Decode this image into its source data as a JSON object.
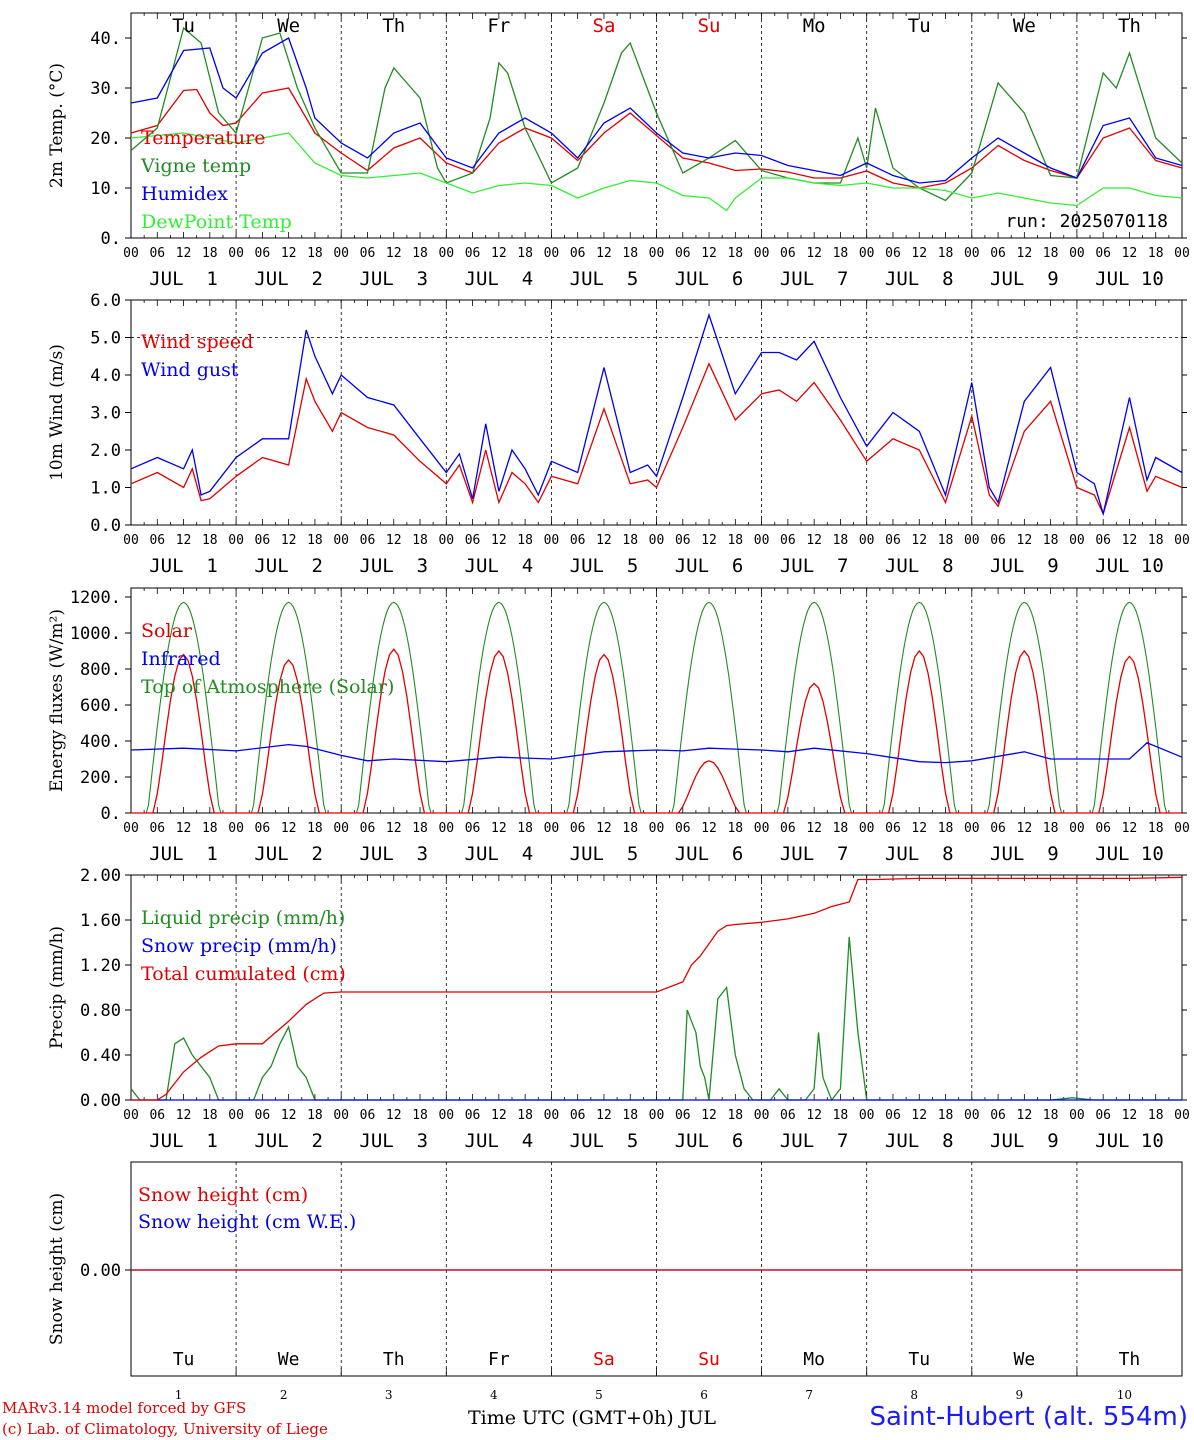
{
  "run_label": "run: 2025070118",
  "day_names": [
    "Tu",
    "We",
    "Th",
    "Fr",
    "Sa",
    "Su",
    "Mo",
    "Tu",
    "We",
    "Th"
  ],
  "day_name_colors": [
    "#000000",
    "#000000",
    "#000000",
    "#000000",
    "#e00000",
    "#e00000",
    "#000000",
    "#000000",
    "#000000",
    "#000000"
  ],
  "date_labels": [
    "JUL  1",
    "JUL  2",
    "JUL  3",
    "JUL  4",
    "JUL  5",
    "JUL  6",
    "JUL  7",
    "JUL  8",
    "JUL  9",
    "JUL 10"
  ],
  "hour_ticks": [
    "00",
    "06",
    "12",
    "18"
  ],
  "last_hour_tick": "00",
  "day_numbers": [
    "1",
    "2",
    "3",
    "4",
    "5",
    "6",
    "7",
    "8",
    "9",
    "10"
  ],
  "xaxis_title": "Time UTC (GMT+0h) JUL",
  "credit_line1": "MARv3.14 model forced by GFS",
  "credit_line2": "(c) Lab. of Climatology, University of Liege",
  "station": "Saint-Hubert (alt. 554m)",
  "chart_data": [
    {
      "type": "line",
      "ylabel": "2m Temp. (°C)",
      "ylim": [
        0,
        45
      ],
      "yticks": [
        "0.",
        "10.",
        "20.",
        "30.",
        "40."
      ],
      "x": "hours since JUL 1 00 UTC (0-240)",
      "series": [
        {
          "name": "Temperature",
          "color": "#e00000",
          "x": [
            0,
            6,
            12,
            15,
            18,
            21,
            24,
            30,
            36,
            40,
            42,
            48,
            54,
            60,
            66,
            72,
            78,
            84,
            90,
            96,
            102,
            108,
            114,
            120,
            126,
            132,
            138,
            144,
            150,
            156,
            162,
            168,
            174,
            180,
            186,
            192,
            198,
            204,
            210,
            216,
            222,
            228,
            234,
            240
          ],
          "y": [
            21,
            22.5,
            29.5,
            29.7,
            25,
            22.5,
            23,
            29,
            30,
            24,
            21,
            17,
            13.5,
            18,
            20,
            15,
            13,
            19,
            22,
            20,
            15.5,
            21,
            25,
            20.5,
            16,
            15,
            13.5,
            13.8,
            13.2,
            12,
            12,
            13.4,
            11,
            10,
            11,
            14,
            18.5,
            15.5,
            13.5,
            12,
            20,
            22,
            15.5,
            14
          ]
        },
        {
          "name": "Vigne temp",
          "color": "#228b22",
          "x": [
            0,
            6,
            12,
            16,
            20,
            24,
            30,
            34,
            38,
            40,
            42,
            48,
            54,
            58,
            60,
            66,
            70,
            72,
            78,
            82,
            84,
            86,
            90,
            96,
            102,
            108,
            112,
            114,
            120,
            126,
            132,
            138,
            144,
            150,
            156,
            162,
            166,
            168,
            170,
            174,
            180,
            186,
            192,
            198,
            204,
            210,
            216,
            222,
            225,
            228,
            234,
            240
          ],
          "y": [
            17.5,
            22,
            42,
            39,
            25,
            21,
            40,
            41,
            30,
            26,
            22,
            13,
            13,
            30,
            34,
            28,
            14,
            11,
            13,
            24,
            35,
            33,
            22,
            11,
            14,
            27,
            37,
            39,
            25,
            13,
            16,
            19.5,
            13.5,
            12,
            11,
            11,
            20,
            14,
            26,
            14,
            10,
            7.5,
            13,
            31,
            25,
            12.5,
            12,
            33,
            30,
            37,
            20,
            15
          ]
        },
        {
          "name": "Humidex",
          "color": "#0000ee",
          "x": [
            0,
            6,
            12,
            18,
            21,
            24,
            30,
            36,
            40,
            42,
            48,
            54,
            60,
            66,
            72,
            78,
            84,
            90,
            96,
            102,
            108,
            114,
            120,
            126,
            132,
            138,
            144,
            150,
            156,
            162,
            168,
            174,
            180,
            186,
            192,
            198,
            204,
            210,
            216,
            222,
            228,
            234,
            240
          ],
          "y": [
            27,
            28,
            37.5,
            38,
            30,
            28,
            37,
            40,
            30,
            24,
            19,
            16,
            21,
            23,
            16,
            14,
            21,
            24,
            21,
            16,
            23,
            26,
            21,
            17,
            16,
            17,
            16.5,
            14.5,
            13.5,
            12.5,
            15,
            12.5,
            11,
            11.5,
            16,
            20,
            17,
            14,
            12,
            22.5,
            24,
            16,
            14.5
          ]
        },
        {
          "name": "DewPoint Temp",
          "color": "#33ee33",
          "x": [
            0,
            6,
            12,
            18,
            24,
            30,
            36,
            42,
            48,
            54,
            60,
            66,
            72,
            78,
            84,
            90,
            96,
            102,
            108,
            114,
            120,
            126,
            132,
            136,
            138,
            144,
            150,
            156,
            162,
            168,
            174,
            180,
            186,
            192,
            198,
            204,
            210,
            216,
            222,
            228,
            234,
            240
          ],
          "y": [
            20,
            20.5,
            21,
            20,
            19,
            20,
            21,
            15,
            12.5,
            12,
            12.5,
            13,
            11,
            9,
            10.5,
            11,
            10.5,
            8,
            10,
            11.5,
            11,
            8.5,
            8,
            5.5,
            8,
            12,
            12,
            11,
            10.5,
            11,
            10,
            10,
            9.5,
            8,
            9,
            8,
            7,
            6.5,
            10,
            10,
            8.5,
            8
          ]
        }
      ],
      "legend": "upper-left"
    },
    {
      "type": "line",
      "ylabel": "10m Wind (m/s)",
      "ylim": [
        0,
        6
      ],
      "yticks": [
        "0.0",
        "1.0",
        "2.0",
        "3.0",
        "4.0",
        "5.0",
        "6.0"
      ],
      "reference_line": 5.0,
      "series": [
        {
          "name": "Wind speed",
          "color": "#e00000",
          "x": [
            0,
            6,
            12,
            14,
            16,
            18,
            24,
            30,
            36,
            40,
            42,
            46,
            48,
            54,
            60,
            66,
            72,
            75,
            78,
            81,
            84,
            87,
            90,
            93,
            96,
            102,
            108,
            114,
            118,
            120,
            126,
            132,
            138,
            144,
            148,
            152,
            156,
            162,
            168,
            174,
            180,
            186,
            192,
            196,
            198,
            204,
            210,
            216,
            220,
            222,
            228,
            232,
            234,
            240
          ],
          "y": [
            1.1,
            1.4,
            1.0,
            1.5,
            0.65,
            0.7,
            1.3,
            1.8,
            1.6,
            3.9,
            3.3,
            2.5,
            3,
            2.6,
            2.4,
            1.7,
            1.1,
            1.6,
            0.6,
            2.0,
            0.6,
            1.4,
            1.1,
            0.6,
            1.3,
            1.1,
            3.1,
            1.1,
            1.2,
            1.0,
            2.6,
            4.3,
            2.8,
            3.5,
            3.6,
            3.3,
            3.8,
            2.8,
            1.7,
            2.3,
            2.0,
            0.6,
            2.9,
            0.8,
            0.5,
            2.5,
            3.3,
            1.0,
            0.8,
            0.3,
            2.6,
            0.9,
            1.3,
            1.0
          ]
        },
        {
          "name": "Wind gust",
          "color": "#0000ee",
          "x": [
            0,
            6,
            12,
            14,
            16,
            18,
            24,
            30,
            36,
            40,
            42,
            46,
            48,
            54,
            60,
            66,
            72,
            75,
            78,
            81,
            84,
            87,
            90,
            93,
            96,
            102,
            108,
            114,
            118,
            120,
            126,
            132,
            138,
            144,
            148,
            152,
            156,
            162,
            168,
            174,
            180,
            186,
            192,
            196,
            198,
            204,
            210,
            216,
            220,
            222,
            228,
            232,
            234,
            240
          ],
          "y": [
            1.5,
            1.8,
            1.5,
            2.0,
            0.8,
            0.9,
            1.8,
            2.3,
            2.3,
            5.2,
            4.5,
            3.5,
            4,
            3.4,
            3.2,
            2.3,
            1.4,
            1.9,
            0.7,
            2.7,
            0.9,
            2.0,
            1.5,
            0.8,
            1.7,
            1.4,
            4.2,
            1.4,
            1.6,
            1.3,
            3.4,
            5.6,
            3.5,
            4.6,
            4.6,
            4.4,
            4.9,
            3.4,
            2.1,
            3,
            2.5,
            0.8,
            3.8,
            1.0,
            0.6,
            3.3,
            4.2,
            1.4,
            1.1,
            0.3,
            3.4,
            1.2,
            1.8,
            1.4
          ]
        }
      ],
      "legend": "upper-left"
    },
    {
      "type": "line",
      "ylabel": "Energy fluxes (W/m²)",
      "ylim": [
        0,
        1250
      ],
      "yticks": [
        "0.",
        "200.",
        "400.",
        "600.",
        "800.",
        "1000.",
        "1200."
      ],
      "series": [
        {
          "name": "Solar",
          "color": "#e00000",
          "peaks_per_day": [
            880,
            850,
            910,
            900,
            880,
            290,
            720,
            900,
            900,
            870
          ]
        },
        {
          "name": "Infrared",
          "color": "#0000ee",
          "x": [
            0,
            12,
            24,
            36,
            40,
            48,
            54,
            60,
            72,
            84,
            96,
            108,
            120,
            126,
            132,
            138,
            144,
            150,
            156,
            168,
            180,
            186,
            192,
            204,
            210,
            216,
            228,
            232,
            240
          ],
          "y": [
            350,
            360,
            345,
            380,
            370,
            320,
            290,
            300,
            285,
            310,
            300,
            340,
            350,
            345,
            360,
            355,
            350,
            340,
            360,
            330,
            285,
            280,
            290,
            340,
            300,
            300,
            300,
            390,
            310
          ]
        },
        {
          "name": "Top of Atmosphere (Solar)",
          "color": "#228b22",
          "daily_peak": 1170,
          "sunrise_hour": 3.8,
          "sunset_hour": 20.2
        }
      ],
      "legend": "upper-left"
    },
    {
      "type": "line",
      "ylabel": "Precip (mm/h)",
      "ylim": [
        0,
        2.0
      ],
      "yticks": [
        "0.00",
        "0.40",
        "0.80",
        "1.20",
        "1.60",
        "2.00"
      ],
      "series": [
        {
          "name": "Liquid precip (mm/h)",
          "color": "#228b22",
          "x": [
            0,
            2,
            4,
            8,
            10,
            12,
            14,
            16,
            18,
            20,
            22,
            24,
            26,
            28,
            30,
            32,
            34,
            36,
            38,
            40,
            42,
            44,
            46,
            48,
            60,
            120,
            126,
            127,
            128,
            129,
            130,
            131,
            132,
            134,
            136,
            138,
            140,
            142,
            144,
            146,
            148,
            150,
            152,
            154,
            156,
            157,
            158,
            159,
            160,
            162,
            164,
            166,
            168,
            170,
            200,
            210,
            215,
            220,
            240
          ],
          "y": [
            0.1,
            0,
            0,
            0,
            0.5,
            0.55,
            0.4,
            0.3,
            0.2,
            0,
            0,
            0,
            0,
            0,
            0.2,
            0.3,
            0.5,
            0.65,
            0.3,
            0.2,
            0,
            0,
            0,
            0,
            0,
            0,
            0,
            0.8,
            0.7,
            0.6,
            0.3,
            0.2,
            0,
            0.9,
            1.0,
            0.4,
            0.1,
            0,
            0,
            0,
            0.1,
            0,
            0,
            0,
            0.1,
            0.6,
            0.2,
            0.1,
            0,
            0.1,
            1.45,
            0.6,
            0,
            0,
            0,
            0,
            0.02,
            0,
            0
          ]
        },
        {
          "name": "Snow precip (mm/h)",
          "color": "#0000ee",
          "x": [
            0,
            240
          ],
          "y": [
            0,
            0
          ]
        },
        {
          "name": "Total cumulated (cm)",
          "color": "#e00000",
          "x": [
            0,
            6,
            8,
            12,
            16,
            20,
            24,
            30,
            36,
            40,
            44,
            48,
            60,
            72,
            84,
            96,
            108,
            120,
            126,
            128,
            130,
            134,
            136,
            138,
            144,
            150,
            156,
            160,
            162,
            164,
            166,
            168,
            170,
            180,
            192,
            204,
            216,
            228,
            240
          ],
          "y": [
            0,
            0,
            0.05,
            0.25,
            0.38,
            0.48,
            0.5,
            0.5,
            0.7,
            0.85,
            0.95,
            0.96,
            0.96,
            0.96,
            0.96,
            0.96,
            0.96,
            0.96,
            1.05,
            1.2,
            1.28,
            1.5,
            1.55,
            1.56,
            1.58,
            1.61,
            1.66,
            1.72,
            1.74,
            1.76,
            1.96,
            1.96,
            1.96,
            1.97,
            1.97,
            1.97,
            1.97,
            1.97,
            1.98
          ]
        }
      ],
      "legend": "upper-left"
    },
    {
      "type": "line",
      "ylabel": "Snow height (cm)",
      "yticks": [
        "0.00"
      ],
      "series": [
        {
          "name": "Snow height (cm)",
          "color": "#e00000",
          "x": [
            0,
            240
          ],
          "y": [
            0,
            0
          ]
        },
        {
          "name": "Snow height (cm W.E.)",
          "color": "#0000ee",
          "x": [
            0,
            240
          ],
          "y": [
            0,
            0
          ]
        }
      ],
      "legend": "upper-left"
    }
  ]
}
